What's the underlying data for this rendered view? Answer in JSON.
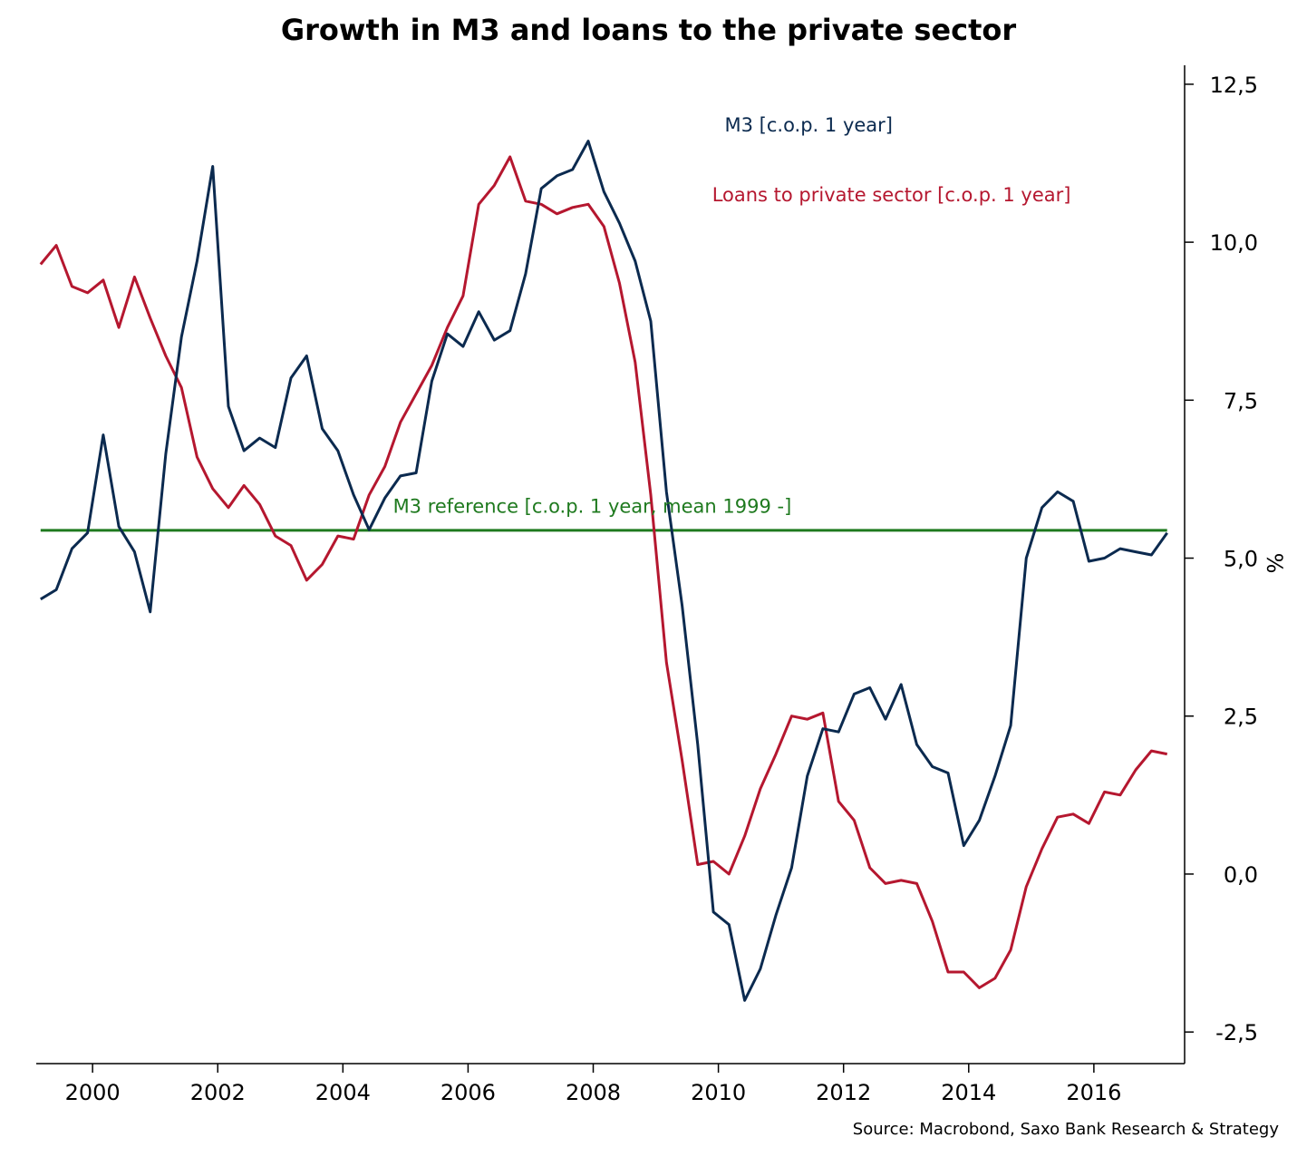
{
  "chart_data": {
    "type": "line",
    "title": "Growth in M3 and loans to the private sector",
    "ylabel": "%",
    "xlabel": "",
    "xlim": [
      1999.1,
      2017.45
    ],
    "ylim": [
      -3.0,
      12.8
    ],
    "y_axis_position": "right",
    "grid": false,
    "x_ticks": [
      {
        "value": 2000,
        "label": "2000"
      },
      {
        "value": 2002,
        "label": "2002"
      },
      {
        "value": 2004,
        "label": "2004"
      },
      {
        "value": 2006,
        "label": "2006"
      },
      {
        "value": 2008,
        "label": "2008"
      },
      {
        "value": 2010,
        "label": "2010"
      },
      {
        "value": 2012,
        "label": "2012"
      },
      {
        "value": 2014,
        "label": "2014"
      },
      {
        "value": 2016,
        "label": "2016"
      }
    ],
    "y_ticks": [
      {
        "value": -2.5,
        "label": "-2,5"
      },
      {
        "value": 0,
        "label": "0,0"
      },
      {
        "value": 2.5,
        "label": "2,5"
      },
      {
        "value": 5,
        "label": "5,0"
      },
      {
        "value": 7.5,
        "label": "7,5"
      },
      {
        "value": 10,
        "label": "10,0"
      },
      {
        "value": 12.5,
        "label": "12,5"
      }
    ],
    "series": [
      {
        "name": "M3 [c.o.p. 1 year]",
        "color": "#0b2a4f",
        "label_anchor": [
          2010.1,
          11.75
        ],
        "points": [
          [
            1999.17,
            4.35
          ],
          [
            1999.42,
            4.5
          ],
          [
            1999.67,
            5.15
          ],
          [
            1999.92,
            5.4
          ],
          [
            2000.17,
            6.95
          ],
          [
            2000.42,
            5.5
          ],
          [
            2000.67,
            5.1
          ],
          [
            2000.92,
            4.15
          ],
          [
            2001.17,
            6.65
          ],
          [
            2001.42,
            8.5
          ],
          [
            2001.67,
            9.7
          ],
          [
            2001.92,
            11.2
          ],
          [
            2002.17,
            7.4
          ],
          [
            2002.42,
            6.7
          ],
          [
            2002.67,
            6.9
          ],
          [
            2002.92,
            6.75
          ],
          [
            2003.17,
            7.85
          ],
          [
            2003.42,
            8.2
          ],
          [
            2003.67,
            7.05
          ],
          [
            2003.92,
            6.7
          ],
          [
            2004.17,
            6.0
          ],
          [
            2004.42,
            5.45
          ],
          [
            2004.67,
            5.95
          ],
          [
            2004.92,
            6.3
          ],
          [
            2005.17,
            6.35
          ],
          [
            2005.42,
            7.8
          ],
          [
            2005.67,
            8.55
          ],
          [
            2005.92,
            8.35
          ],
          [
            2006.17,
            8.9
          ],
          [
            2006.42,
            8.45
          ],
          [
            2006.67,
            8.6
          ],
          [
            2006.92,
            9.5
          ],
          [
            2007.17,
            10.85
          ],
          [
            2007.42,
            11.05
          ],
          [
            2007.67,
            11.15
          ],
          [
            2007.92,
            11.6
          ],
          [
            2008.17,
            10.8
          ],
          [
            2008.42,
            10.3
          ],
          [
            2008.67,
            9.7
          ],
          [
            2008.92,
            8.75
          ],
          [
            2009.17,
            6.05
          ],
          [
            2009.42,
            4.25
          ],
          [
            2009.67,
            2.05
          ],
          [
            2009.92,
            -0.6
          ],
          [
            2010.17,
            -0.8
          ],
          [
            2010.42,
            -2.0
          ],
          [
            2010.67,
            -1.5
          ],
          [
            2010.92,
            -0.65
          ],
          [
            2011.17,
            0.1
          ],
          [
            2011.42,
            1.55
          ],
          [
            2011.67,
            2.3
          ],
          [
            2011.92,
            2.25
          ],
          [
            2012.17,
            2.85
          ],
          [
            2012.42,
            2.95
          ],
          [
            2012.67,
            2.45
          ],
          [
            2012.92,
            3.0
          ],
          [
            2013.17,
            2.05
          ],
          [
            2013.42,
            1.7
          ],
          [
            2013.67,
            1.6
          ],
          [
            2013.92,
            0.45
          ],
          [
            2014.17,
            0.85
          ],
          [
            2014.42,
            1.55
          ],
          [
            2014.67,
            2.35
          ],
          [
            2014.92,
            5.0
          ],
          [
            2015.17,
            5.8
          ],
          [
            2015.42,
            6.05
          ],
          [
            2015.67,
            5.9
          ],
          [
            2015.92,
            4.95
          ],
          [
            2016.17,
            5.0
          ],
          [
            2016.42,
            5.15
          ],
          [
            2016.67,
            5.1
          ],
          [
            2016.92,
            5.05
          ],
          [
            2017.17,
            5.4
          ]
        ]
      },
      {
        "name": "Loans to private sector [c.o.p. 1 year]",
        "color": "#b5172f",
        "label_anchor": [
          2009.9,
          10.65
        ],
        "points": [
          [
            1999.17,
            9.65
          ],
          [
            1999.42,
            9.95
          ],
          [
            1999.67,
            9.3
          ],
          [
            1999.92,
            9.2
          ],
          [
            2000.17,
            9.4
          ],
          [
            2000.42,
            8.65
          ],
          [
            2000.67,
            9.45
          ],
          [
            2000.92,
            8.8
          ],
          [
            2001.17,
            8.2
          ],
          [
            2001.42,
            7.7
          ],
          [
            2001.67,
            6.6
          ],
          [
            2001.92,
            6.1
          ],
          [
            2002.17,
            5.8
          ],
          [
            2002.42,
            6.15
          ],
          [
            2002.67,
            5.85
          ],
          [
            2002.92,
            5.35
          ],
          [
            2003.17,
            5.2
          ],
          [
            2003.42,
            4.65
          ],
          [
            2003.67,
            4.9
          ],
          [
            2003.92,
            5.35
          ],
          [
            2004.17,
            5.3
          ],
          [
            2004.42,
            6.0
          ],
          [
            2004.67,
            6.45
          ],
          [
            2004.92,
            7.15
          ],
          [
            2005.17,
            7.6
          ],
          [
            2005.42,
            8.05
          ],
          [
            2005.67,
            8.65
          ],
          [
            2005.92,
            9.15
          ],
          [
            2006.17,
            10.6
          ],
          [
            2006.42,
            10.9
          ],
          [
            2006.67,
            11.35
          ],
          [
            2006.92,
            10.65
          ],
          [
            2007.17,
            10.6
          ],
          [
            2007.42,
            10.45
          ],
          [
            2007.67,
            10.55
          ],
          [
            2007.92,
            10.6
          ],
          [
            2008.17,
            10.25
          ],
          [
            2008.42,
            9.35
          ],
          [
            2008.67,
            8.1
          ],
          [
            2008.92,
            6.0
          ],
          [
            2009.17,
            3.35
          ],
          [
            2009.42,
            1.8
          ],
          [
            2009.67,
            0.15
          ],
          [
            2009.92,
            0.2
          ],
          [
            2010.17,
            0.0
          ],
          [
            2010.42,
            0.6
          ],
          [
            2010.67,
            1.35
          ],
          [
            2010.92,
            1.9
          ],
          [
            2011.17,
            2.5
          ],
          [
            2011.42,
            2.45
          ],
          [
            2011.67,
            2.55
          ],
          [
            2011.92,
            1.15
          ],
          [
            2012.17,
            0.85
          ],
          [
            2012.42,
            0.1
          ],
          [
            2012.67,
            -0.15
          ],
          [
            2012.92,
            -0.1
          ],
          [
            2013.17,
            -0.15
          ],
          [
            2013.42,
            -0.75
          ],
          [
            2013.67,
            -1.55
          ],
          [
            2013.92,
            -1.55
          ],
          [
            2014.17,
            -1.8
          ],
          [
            2014.42,
            -1.65
          ],
          [
            2014.67,
            -1.2
          ],
          [
            2014.92,
            -0.2
          ],
          [
            2015.17,
            0.4
          ],
          [
            2015.42,
            0.9
          ],
          [
            2015.67,
            0.95
          ],
          [
            2015.92,
            0.8
          ],
          [
            2016.17,
            1.3
          ],
          [
            2016.42,
            1.25
          ],
          [
            2016.67,
            1.65
          ],
          [
            2016.92,
            1.95
          ],
          [
            2017.17,
            1.9
          ]
        ]
      },
      {
        "name": "M3 reference [c.o.p. 1 year, mean 1999 -]",
        "color": "#1f7a1f",
        "label_anchor": [
          2004.8,
          5.72
        ],
        "points": [
          [
            1999.17,
            5.44
          ],
          [
            2017.17,
            5.44
          ]
        ]
      }
    ]
  },
  "source_note": "Source: Macrobond, Saxo Bank Research & Strategy"
}
